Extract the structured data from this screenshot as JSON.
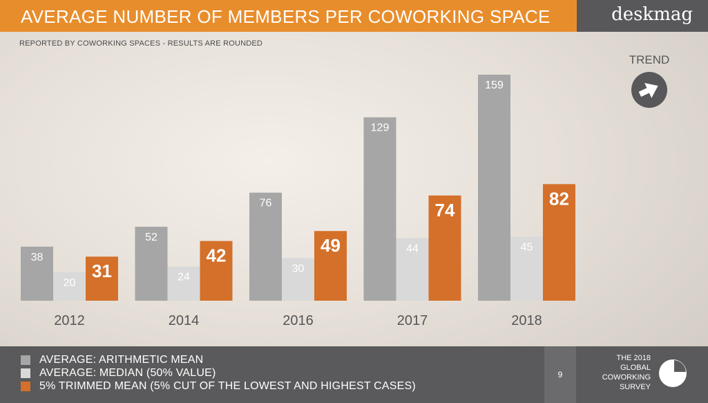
{
  "header": {
    "title": "AVERAGE NUMBER OF MEMBERS PER COWORKING SPACE",
    "brand": "deskmag"
  },
  "subtitle": "REPORTED BY COWORKING SPACES - RESULTS ARE ROUNDED",
  "trend": {
    "label": "TREND",
    "icon": "right-arrow-icon"
  },
  "colors": {
    "mean": "#a6a6a6",
    "median": "#d9d9d9",
    "trimmed": "#d4702a",
    "title_bar": "#e88d2c",
    "footer": "#5a595b"
  },
  "chart_data": {
    "type": "bar",
    "title": "AVERAGE NUMBER OF MEMBERS PER COWORKING SPACE",
    "categories": [
      "2012",
      "2014",
      "2016",
      "2017",
      "2018"
    ],
    "series": [
      {
        "name": "AVERAGE: ARITHMETIC MEAN",
        "values": [
          38,
          52,
          76,
          129,
          159
        ]
      },
      {
        "name": "AVERAGE: MEDIAN (50% VALUE)",
        "values": [
          20,
          24,
          30,
          44,
          45
        ]
      },
      {
        "name": "5% TRIMMED MEAN (5% CUT OF THE LOWEST AND HIGHEST CASES)",
        "values": [
          31,
          42,
          49,
          74,
          82
        ]
      }
    ],
    "xlabel": "",
    "ylabel": "",
    "ylim": [
      0,
      160
    ],
    "grid": false
  },
  "legend": [
    {
      "label": "AVERAGE: ARITHMETIC MEAN",
      "color": "#a6a6a6"
    },
    {
      "label": "AVERAGE: MEDIAN (50% VALUE)",
      "color": "#d9d9d9"
    },
    {
      "label": "5% TRIMMED MEAN (5% CUT OF THE LOWEST AND HIGHEST CASES)",
      "color": "#d4702a"
    }
  ],
  "footer": {
    "page_number": "9",
    "survey_lines": [
      "THE 2018",
      "GLOBAL",
      "COWORKING",
      "SURVEY"
    ],
    "survey_icon": "pie-chart-icon"
  }
}
